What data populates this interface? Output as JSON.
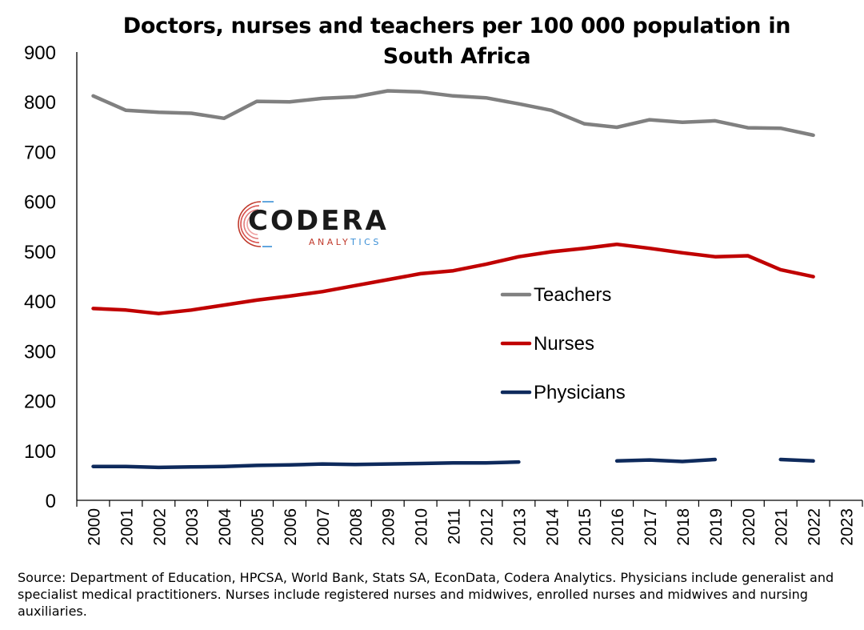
{
  "chart_data": {
    "type": "line",
    "title_lines": [
      "Doctors, nurses and teachers per 100 000 population in",
      "South Africa"
    ],
    "xlabel": "",
    "ylabel": "",
    "ylim": [
      0,
      900
    ],
    "yticks": [
      "0",
      "100",
      "200",
      "300",
      "400",
      "500",
      "600",
      "700",
      "800",
      "900"
    ],
    "x": [
      "2000",
      "2001",
      "2002",
      "2003",
      "2004",
      "2005",
      "2006",
      "2007",
      "2008",
      "2009",
      "2010",
      "2011",
      "2012",
      "2013",
      "2014",
      "2015",
      "2016",
      "2017",
      "2018",
      "2019",
      "2020",
      "2021",
      "2022",
      "2023"
    ],
    "grid": false,
    "legend_position": "center-right",
    "series": [
      {
        "name": "Teachers",
        "color": "#808080",
        "values": [
          812,
          783,
          779,
          777,
          767,
          801,
          800,
          807,
          810,
          822,
          820,
          812,
          808,
          796,
          783,
          756,
          749,
          764,
          759,
          762,
          748,
          747,
          733,
          null
        ]
      },
      {
        "name": "Nurses",
        "color": "#c00000",
        "values": [
          385,
          382,
          375,
          382,
          392,
          402,
          410,
          419,
          431,
          443,
          455,
          461,
          474,
          489,
          499,
          506,
          514,
          506,
          497,
          489,
          491,
          463,
          449,
          null
        ]
      },
      {
        "name": "Physicians",
        "color": "#0e2a5c",
        "values": [
          68,
          68,
          66,
          67,
          68,
          70,
          71,
          73,
          72,
          73,
          74,
          75,
          75,
          77,
          null,
          null,
          79,
          81,
          78,
          82,
          null,
          82,
          79,
          null
        ]
      }
    ]
  },
  "logo": {
    "word": "CODERA",
    "sub_red": "ANALY",
    "sub_blue": "TICS"
  },
  "source": "Source: Department of Education, HPCSA, World Bank, Stats SA, EconData, Codera Analytics. Physicians include generalist and specialist medical practitioners. Nurses include registered nurses and midwives, enrolled nurses and midwives and nursing auxiliaries."
}
